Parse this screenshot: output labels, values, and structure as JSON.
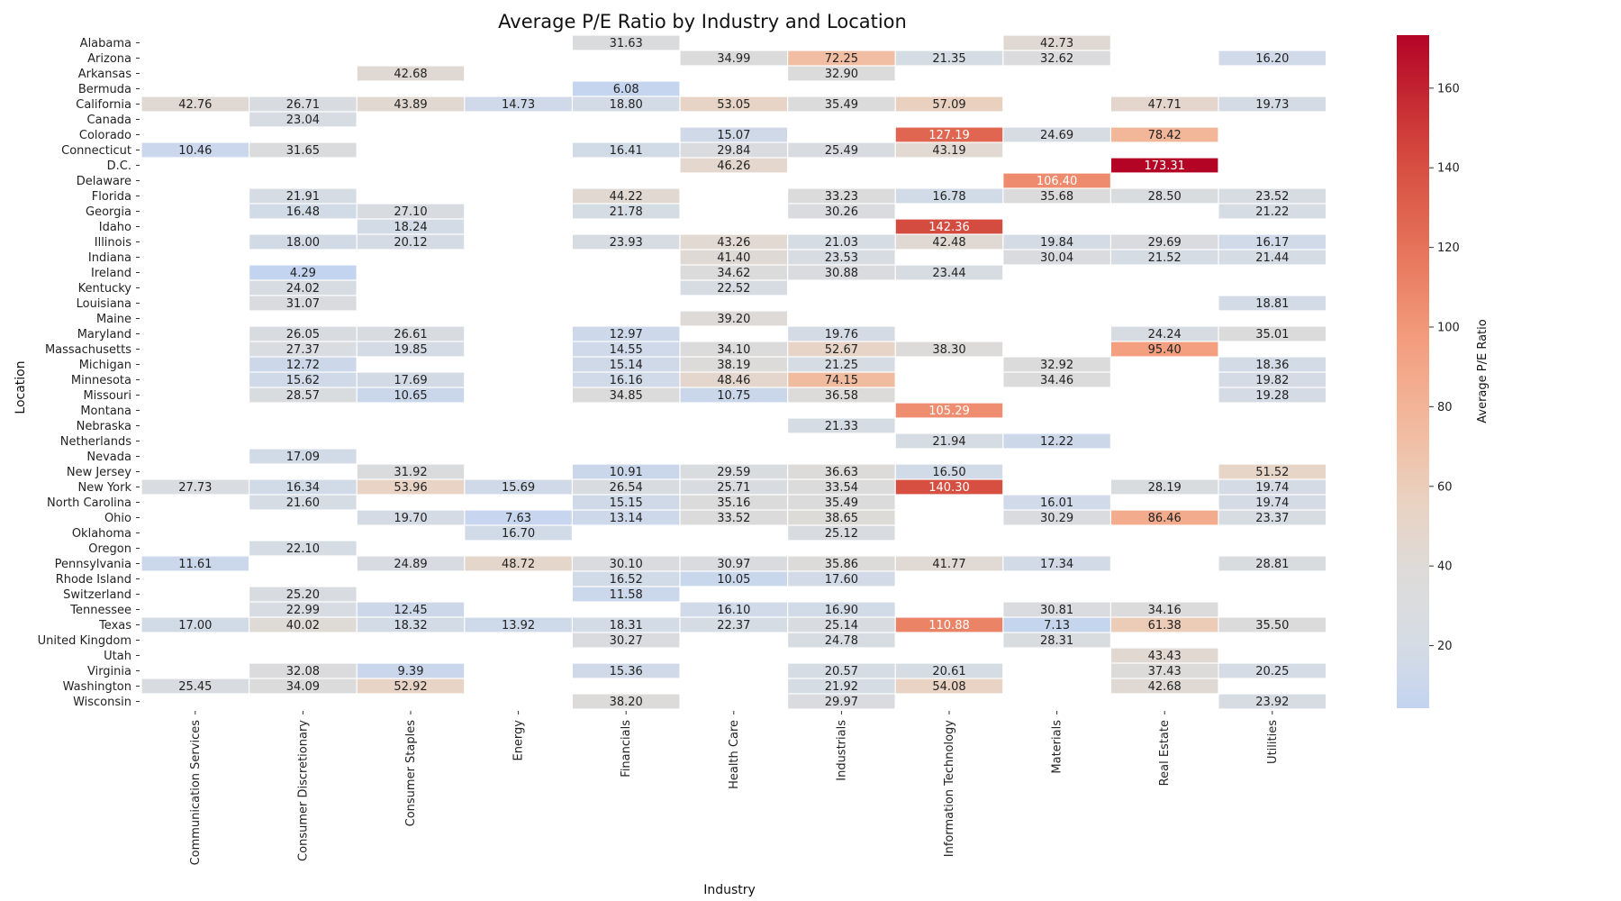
{
  "chart_data": {
    "type": "heatmap",
    "title": "Average P/E Ratio by Industry and Location",
    "xlabel": "Industry",
    "ylabel": "Location",
    "colorbar_label": "Average P/E Ratio",
    "colormap": "coolwarm",
    "vmin": 4.29,
    "vmax": 173.31,
    "colorbar_ticks": [
      20,
      40,
      60,
      80,
      100,
      120,
      140,
      160
    ],
    "columns": [
      "Communication Services",
      "Consumer Discretionary",
      "Consumer Staples",
      "Energy",
      "Financials",
      "Health Care",
      "Industrials",
      "Information Technology",
      "Materials",
      "Real Estate",
      "Utilities"
    ],
    "rows": [
      "Alabama",
      "Arizona",
      "Arkansas",
      "Bermuda",
      "California",
      "Canada",
      "Colorado",
      "Connecticut",
      "D.C.",
      "Delaware",
      "Florida",
      "Georgia",
      "Idaho",
      "Illinois",
      "Indiana",
      "Ireland",
      "Kentucky",
      "Louisiana",
      "Maine",
      "Maryland",
      "Massachusetts",
      "Michigan",
      "Minnesota",
      "Missouri",
      "Montana",
      "Nebraska",
      "Netherlands",
      "Nevada",
      "New Jersey",
      "New York",
      "North Carolina",
      "Ohio",
      "Oklahoma",
      "Oregon",
      "Pennsylvania",
      "Rhode Island",
      "Switzerland",
      "Tennessee",
      "Texas",
      "United Kingdom",
      "Utah",
      "Virginia",
      "Washington",
      "Wisconsin"
    ],
    "values": [
      [
        null,
        null,
        null,
        null,
        31.63,
        null,
        null,
        null,
        42.73,
        null,
        null
      ],
      [
        null,
        null,
        null,
        null,
        null,
        34.99,
        72.25,
        21.35,
        32.62,
        null,
        16.2
      ],
      [
        null,
        null,
        42.68,
        null,
        null,
        null,
        32.9,
        null,
        null,
        null,
        null
      ],
      [
        null,
        null,
        null,
        null,
        6.08,
        null,
        null,
        null,
        null,
        null,
        null
      ],
      [
        42.76,
        26.71,
        43.89,
        14.73,
        18.8,
        53.05,
        35.49,
        57.09,
        null,
        47.71,
        19.73
      ],
      [
        null,
        23.04,
        null,
        null,
        null,
        null,
        null,
        null,
        null,
        null,
        null
      ],
      [
        null,
        null,
        null,
        null,
        null,
        15.07,
        null,
        127.19,
        24.69,
        78.42,
        null
      ],
      [
        10.46,
        31.65,
        null,
        null,
        16.41,
        29.84,
        25.49,
        43.19,
        null,
        null,
        null
      ],
      [
        null,
        null,
        null,
        null,
        null,
        46.26,
        null,
        null,
        null,
        173.31,
        null
      ],
      [
        null,
        null,
        null,
        null,
        null,
        null,
        null,
        null,
        106.4,
        null,
        null
      ],
      [
        null,
        21.91,
        null,
        null,
        44.22,
        null,
        33.23,
        16.78,
        35.68,
        28.5,
        23.52
      ],
      [
        null,
        16.48,
        27.1,
        null,
        21.78,
        null,
        30.26,
        null,
        null,
        null,
        21.22
      ],
      [
        null,
        null,
        18.24,
        null,
        null,
        null,
        null,
        142.36,
        null,
        null,
        null
      ],
      [
        null,
        18.0,
        20.12,
        null,
        23.93,
        43.26,
        21.03,
        42.48,
        19.84,
        29.69,
        16.17
      ],
      [
        null,
        null,
        null,
        null,
        null,
        41.4,
        23.53,
        null,
        30.04,
        21.52,
        21.44
      ],
      [
        null,
        4.29,
        null,
        null,
        null,
        34.62,
        30.88,
        23.44,
        null,
        null,
        null
      ],
      [
        null,
        24.02,
        null,
        null,
        null,
        22.52,
        null,
        null,
        null,
        null,
        null
      ],
      [
        null,
        31.07,
        null,
        null,
        null,
        null,
        null,
        null,
        null,
        null,
        18.81
      ],
      [
        null,
        null,
        null,
        null,
        null,
        39.2,
        null,
        null,
        null,
        null,
        null
      ],
      [
        null,
        26.05,
        26.61,
        null,
        12.97,
        null,
        19.76,
        null,
        null,
        24.24,
        35.01
      ],
      [
        null,
        27.37,
        19.85,
        null,
        14.55,
        34.1,
        52.67,
        38.3,
        null,
        95.4,
        null
      ],
      [
        null,
        12.72,
        null,
        null,
        15.14,
        38.19,
        21.25,
        null,
        32.92,
        null,
        18.36
      ],
      [
        null,
        15.62,
        17.69,
        null,
        16.16,
        48.46,
        74.15,
        null,
        34.46,
        null,
        19.82
      ],
      [
        null,
        28.57,
        10.65,
        null,
        34.85,
        10.75,
        36.58,
        null,
        null,
        null,
        19.28
      ],
      [
        null,
        null,
        null,
        null,
        null,
        null,
        null,
        105.29,
        null,
        null,
        null
      ],
      [
        null,
        null,
        null,
        null,
        null,
        null,
        21.33,
        null,
        null,
        null,
        null
      ],
      [
        null,
        null,
        null,
        null,
        null,
        null,
        null,
        21.94,
        12.22,
        null,
        null
      ],
      [
        null,
        17.09,
        null,
        null,
        null,
        null,
        null,
        null,
        null,
        null,
        null
      ],
      [
        null,
        null,
        31.92,
        null,
        10.91,
        29.59,
        36.63,
        16.5,
        null,
        null,
        51.52
      ],
      [
        27.73,
        16.34,
        53.96,
        15.69,
        26.54,
        25.71,
        33.54,
        140.3,
        null,
        28.19,
        19.74
      ],
      [
        null,
        21.6,
        null,
        null,
        15.15,
        35.16,
        35.49,
        null,
        16.01,
        null,
        19.74
      ],
      [
        null,
        null,
        19.7,
        7.63,
        13.14,
        33.52,
        38.65,
        null,
        30.29,
        86.46,
        23.37
      ],
      [
        null,
        null,
        null,
        16.7,
        null,
        null,
        25.12,
        null,
        null,
        null,
        null
      ],
      [
        null,
        22.1,
        null,
        null,
        null,
        null,
        null,
        null,
        null,
        null,
        null
      ],
      [
        11.61,
        null,
        24.89,
        48.72,
        30.1,
        30.97,
        35.86,
        41.77,
        17.34,
        null,
        28.81
      ],
      [
        null,
        null,
        null,
        null,
        16.52,
        10.05,
        17.6,
        null,
        null,
        null,
        null
      ],
      [
        null,
        25.2,
        null,
        null,
        11.58,
        null,
        null,
        null,
        null,
        null,
        null
      ],
      [
        null,
        22.99,
        12.45,
        null,
        null,
        16.1,
        16.9,
        null,
        30.81,
        34.16,
        null
      ],
      [
        17.0,
        40.02,
        18.32,
        13.92,
        18.31,
        22.37,
        25.14,
        110.88,
        7.13,
        61.38,
        35.5
      ],
      [
        null,
        null,
        null,
        null,
        30.27,
        null,
        24.78,
        null,
        28.31,
        null,
        null
      ],
      [
        null,
        null,
        null,
        null,
        null,
        null,
        null,
        null,
        null,
        43.43,
        null
      ],
      [
        null,
        32.08,
        9.39,
        null,
        15.36,
        null,
        20.57,
        20.61,
        null,
        37.43,
        20.25
      ],
      [
        25.45,
        34.09,
        52.92,
        null,
        null,
        null,
        21.92,
        54.08,
        null,
        42.68,
        null
      ],
      [
        null,
        null,
        null,
        null,
        38.2,
        null,
        29.97,
        null,
        null,
        null,
        23.92
      ]
    ]
  }
}
